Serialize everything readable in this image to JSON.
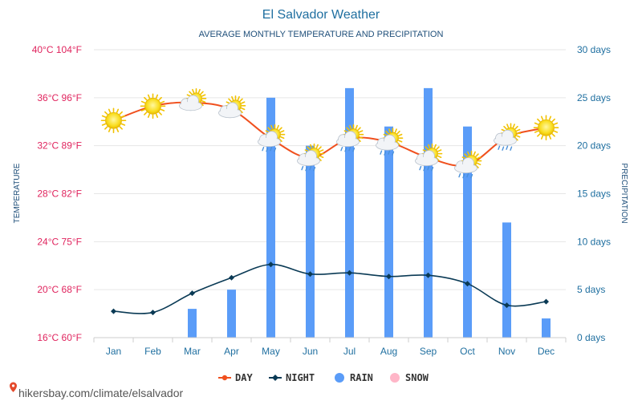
{
  "chart_data": {
    "type": "line+bar",
    "title": "El Salvador Weather",
    "subtitle": "AVERAGE MONTHLY TEMPERATURE AND PRECIPITATION",
    "ylabel_left": "TEMPERATURE",
    "ylabel_right": "PRECIPITATION",
    "categories": [
      "Jan",
      "Feb",
      "Mar",
      "Apr",
      "May",
      "Jun",
      "Jul",
      "Aug",
      "Sep",
      "Oct",
      "Nov",
      "Dec"
    ],
    "left_ticks": [
      {
        "value": 40,
        "label": "40°C 104°F"
      },
      {
        "value": 36,
        "label": "36°C 96°F"
      },
      {
        "value": 32,
        "label": "32°C 89°F"
      },
      {
        "value": 28,
        "label": "28°C 82°F"
      },
      {
        "value": 24,
        "label": "24°C 75°F"
      },
      {
        "value": 20,
        "label": "20°C 68°F"
      },
      {
        "value": 16,
        "label": "16°C 60°F"
      }
    ],
    "right_ticks": [
      {
        "value": 30,
        "label": "30 days"
      },
      {
        "value": 25,
        "label": "25 days"
      },
      {
        "value": 20,
        "label": "20 days"
      },
      {
        "value": 15,
        "label": "15 days"
      },
      {
        "value": 10,
        "label": "10 days"
      },
      {
        "value": 5,
        "label": "5 days"
      },
      {
        "value": 0,
        "label": "0 days"
      }
    ],
    "ylim_left": [
      16,
      40
    ],
    "ylim_right": [
      0,
      30
    ],
    "series": [
      {
        "name": "DAY",
        "kind": "line",
        "axis": "left",
        "color": "#f0501e",
        "values": [
          34.1,
          35.3,
          35.6,
          35.0,
          32.6,
          31.0,
          32.6,
          32.3,
          31.0,
          30.4,
          32.7,
          33.5
        ]
      },
      {
        "name": "NIGHT",
        "kind": "line",
        "axis": "left",
        "color": "#0a3a55",
        "values": [
          18.2,
          18.1,
          19.7,
          21.0,
          22.1,
          21.3,
          21.4,
          21.1,
          21.2,
          20.5,
          18.7,
          19.0
        ]
      },
      {
        "name": "RAIN",
        "kind": "bar",
        "axis": "right",
        "color": "#5a9cf8",
        "values": [
          0,
          0,
          3,
          5,
          25,
          20,
          26,
          22,
          26,
          22,
          12,
          2
        ]
      },
      {
        "name": "SNOW",
        "kind": "bar",
        "axis": "right",
        "color": "#ffb6c8",
        "values": [
          0,
          0,
          0,
          0,
          0,
          0,
          0,
          0,
          0,
          0,
          0,
          0
        ]
      }
    ],
    "weather_icons": [
      "sun-icon",
      "sun-icon",
      "sun-cloud-icon",
      "sun-cloud-icon",
      "sun-cloud-rain-icon",
      "sun-cloud-rain-icon",
      "sun-cloud-rain-icon",
      "sun-cloud-rain-icon",
      "sun-cloud-rain-icon",
      "sun-cloud-rain-icon",
      "sun-cloud-rain-icon",
      "sun-icon"
    ],
    "legend_position": "bottom",
    "grid": true
  },
  "footer": {
    "url": "hikersbay.com/climate/elsalvador"
  },
  "colors": {
    "title": "#1f6fa0",
    "left_axis": "#e0245e",
    "right_axis": "#1f6fa0",
    "grid": "#e6e6e6"
  }
}
